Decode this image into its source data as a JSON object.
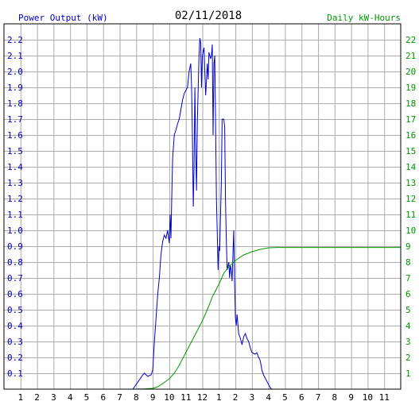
{
  "chart_data": {
    "type": "line",
    "title": "02/11/2018",
    "left_axis_label": "Power Output (kW)",
    "right_axis_label": "Daily kW-Hours",
    "x_tick_labels": [
      "1",
      "2",
      "3",
      "4",
      "5",
      "6",
      "7",
      "8",
      "9",
      "10",
      "11",
      "12",
      "1",
      "2",
      "3",
      "4",
      "5",
      "6",
      "7",
      "8",
      "9",
      "10",
      "11"
    ],
    "left_ylim": [
      0,
      2.3
    ],
    "left_y_ticks": [
      "0.1",
      "0.2",
      "0.3",
      "0.4",
      "0.5",
      "0.6",
      "0.7",
      "0.8",
      "0.9",
      "1.0",
      "1.1",
      "1.2",
      "1.3",
      "1.4",
      "1.5",
      "1.6",
      "1.7",
      "1.8",
      "1.9",
      "2.0",
      "2.1",
      "2.2"
    ],
    "right_ylim": [
      0,
      23
    ],
    "right_y_ticks": [
      "1",
      "2",
      "3",
      "4",
      "5",
      "6",
      "7",
      "8",
      "9",
      "10",
      "11",
      "12",
      "13",
      "14",
      "15",
      "16",
      "17",
      "18",
      "19",
      "20",
      "21",
      "22"
    ],
    "grid": true,
    "colors": {
      "power": "#0000cc",
      "energy": "#009900",
      "left_axis": "#0000cc",
      "right_axis": "#009900",
      "grid": "#aaaaaa",
      "frame": "#000000"
    },
    "series": [
      {
        "axis": "left",
        "color": "#0000cc",
        "points": [
          [
            7.8,
            0.0
          ],
          [
            8.0,
            0.03
          ],
          [
            8.2,
            0.06
          ],
          [
            8.4,
            0.09
          ],
          [
            8.5,
            0.1
          ],
          [
            8.7,
            0.08
          ],
          [
            8.9,
            0.09
          ],
          [
            9.0,
            0.12
          ],
          [
            9.1,
            0.3
          ],
          [
            9.2,
            0.45
          ],
          [
            9.3,
            0.6
          ],
          [
            9.4,
            0.7
          ],
          [
            9.5,
            0.85
          ],
          [
            9.6,
            0.93
          ],
          [
            9.7,
            0.97
          ],
          [
            9.8,
            0.95
          ],
          [
            9.9,
            1.0
          ],
          [
            10.0,
            0.92
          ],
          [
            10.05,
            1.1
          ],
          [
            10.1,
            0.95
          ],
          [
            10.15,
            1.2
          ],
          [
            10.2,
            1.45
          ],
          [
            10.3,
            1.6
          ],
          [
            10.4,
            1.63
          ],
          [
            10.5,
            1.67
          ],
          [
            10.6,
            1.7
          ],
          [
            10.7,
            1.76
          ],
          [
            10.8,
            1.82
          ],
          [
            10.9,
            1.86
          ],
          [
            11.0,
            1.88
          ],
          [
            11.1,
            1.9
          ],
          [
            11.15,
            1.95
          ],
          [
            11.2,
            2.0
          ],
          [
            11.3,
            2.05
          ],
          [
            11.35,
            1.9
          ],
          [
            11.4,
            1.6
          ],
          [
            11.45,
            1.15
          ],
          [
            11.5,
            1.4
          ],
          [
            11.55,
            1.9
          ],
          [
            11.6,
            1.5
          ],
          [
            11.65,
            1.25
          ],
          [
            11.7,
            1.7
          ],
          [
            11.8,
            2.1
          ],
          [
            11.85,
            2.21
          ],
          [
            11.9,
            2.18
          ],
          [
            11.95,
            1.9
          ],
          [
            12.0,
            2.1
          ],
          [
            12.1,
            2.15
          ],
          [
            12.15,
            2.0
          ],
          [
            12.2,
            1.85
          ],
          [
            12.3,
            2.05
          ],
          [
            12.35,
            1.95
          ],
          [
            12.4,
            2.12
          ],
          [
            12.5,
            2.08
          ],
          [
            12.55,
            2.1
          ],
          [
            12.6,
            2.17
          ],
          [
            12.65,
            1.6
          ],
          [
            12.7,
            2.05
          ],
          [
            12.75,
            2.1
          ],
          [
            12.8,
            1.7
          ],
          [
            12.85,
            1.2
          ],
          [
            12.9,
            1.0
          ],
          [
            12.95,
            0.75
          ],
          [
            13.0,
            0.9
          ],
          [
            13.05,
            0.87
          ],
          [
            13.1,
            1.1
          ],
          [
            13.15,
            1.3
          ],
          [
            13.2,
            1.7
          ],
          [
            13.3,
            1.7
          ],
          [
            13.35,
            1.65
          ],
          [
            13.4,
            1.2
          ],
          [
            13.45,
            0.95
          ],
          [
            13.5,
            0.75
          ],
          [
            13.6,
            0.8
          ],
          [
            13.65,
            0.7
          ],
          [
            13.7,
            0.78
          ],
          [
            13.75,
            0.75
          ],
          [
            13.8,
            0.68
          ],
          [
            13.85,
            0.85
          ],
          [
            13.9,
            1.0
          ],
          [
            13.95,
            0.7
          ],
          [
            14.0,
            0.45
          ],
          [
            14.05,
            0.4
          ],
          [
            14.1,
            0.47
          ],
          [
            14.2,
            0.35
          ],
          [
            14.3,
            0.32
          ],
          [
            14.4,
            0.28
          ],
          [
            14.5,
            0.33
          ],
          [
            14.6,
            0.35
          ],
          [
            14.7,
            0.32
          ],
          [
            14.8,
            0.3
          ],
          [
            14.9,
            0.26
          ],
          [
            15.0,
            0.23
          ],
          [
            15.2,
            0.22
          ],
          [
            15.3,
            0.23
          ],
          [
            15.4,
            0.2
          ],
          [
            15.5,
            0.18
          ],
          [
            15.6,
            0.12
          ],
          [
            15.7,
            0.09
          ],
          [
            15.8,
            0.07
          ],
          [
            15.9,
            0.05
          ],
          [
            16.0,
            0.03
          ],
          [
            16.1,
            0.01
          ],
          [
            16.2,
            0.0
          ]
        ]
      },
      {
        "axis": "right",
        "color": "#009900",
        "points": [
          [
            7.8,
            0.0
          ],
          [
            8.5,
            0.02
          ],
          [
            9.0,
            0.05
          ],
          [
            9.3,
            0.15
          ],
          [
            9.6,
            0.35
          ],
          [
            10.0,
            0.65
          ],
          [
            10.3,
            1.0
          ],
          [
            10.6,
            1.5
          ],
          [
            11.0,
            2.3
          ],
          [
            11.5,
            3.3
          ],
          [
            12.0,
            4.3
          ],
          [
            12.3,
            5.0
          ],
          [
            12.6,
            5.8
          ],
          [
            13.0,
            6.6
          ],
          [
            13.3,
            7.3
          ],
          [
            13.6,
            7.7
          ],
          [
            14.0,
            8.1
          ],
          [
            14.5,
            8.45
          ],
          [
            15.0,
            8.65
          ],
          [
            15.5,
            8.8
          ],
          [
            16.0,
            8.9
          ],
          [
            16.5,
            8.92
          ],
          [
            24.0,
            8.92
          ]
        ]
      }
    ]
  }
}
